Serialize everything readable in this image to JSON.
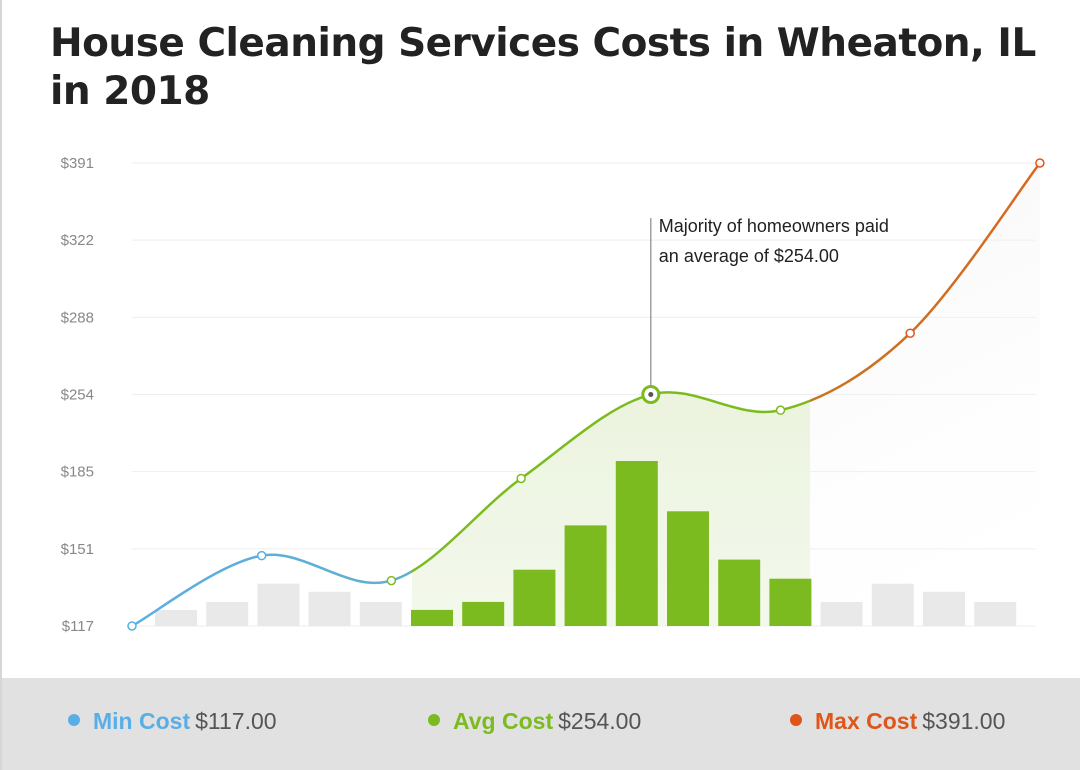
{
  "title": "House Cleaning Services Costs in Wheaton, IL in 2018",
  "colors": {
    "min": "#5aaee6",
    "avg": "#7cbb1f",
    "max": "#e0561a",
    "bar_gray": "#e9e9e9",
    "grid": "#eeeeee",
    "axis_text": "#888888"
  },
  "annotation": {
    "line1": "Majority of homeowners paid",
    "line2": "an average of $254.00"
  },
  "legend": [
    {
      "key": "min",
      "name": "Min Cost",
      "value": "$117.00"
    },
    {
      "key": "avg",
      "name": "Avg Cost",
      "value": "$254.00"
    },
    {
      "key": "max",
      "name": "Max Cost",
      "value": "$391.00"
    }
  ],
  "chart_data": {
    "type": "line",
    "title": "House Cleaning Services Costs in Wheaton, IL in 2018",
    "xlabel": "",
    "ylabel": "",
    "y_tick_labels": [
      "$117",
      "$151",
      "$185",
      "$254",
      "$288",
      "$322",
      "$391"
    ],
    "y_tick_values": [
      117,
      151,
      185,
      254,
      288,
      322,
      391
    ],
    "grid": true,
    "legend_position": "bottom",
    "curve_points": [
      {
        "x": 0,
        "y": 117
      },
      {
        "x": 1,
        "y": 148
      },
      {
        "x": 2,
        "y": 137
      },
      {
        "x": 3,
        "y": 182
      },
      {
        "x": 4,
        "y": 254
      },
      {
        "x": 5,
        "y": 240
      },
      {
        "x": 6,
        "y": 281
      },
      {
        "x": 7,
        "y": 391
      }
    ],
    "segments": [
      {
        "name": "Min Cost",
        "from": 0,
        "to": 2
      },
      {
        "name": "Avg Cost",
        "from": 2,
        "to": 5
      },
      {
        "name": "Max Cost",
        "from": 5,
        "to": 7
      }
    ],
    "highlight_point": {
      "x": 4,
      "y": 254
    },
    "distribution_bars": [
      {
        "value": 16,
        "highlight": false
      },
      {
        "value": 24,
        "highlight": false
      },
      {
        "value": 42,
        "highlight": false
      },
      {
        "value": 34,
        "highlight": false
      },
      {
        "value": 24,
        "highlight": false
      },
      {
        "value": 16,
        "highlight": true
      },
      {
        "value": 24,
        "highlight": true
      },
      {
        "value": 56,
        "highlight": true
      },
      {
        "value": 100,
        "highlight": true
      },
      {
        "value": 164,
        "highlight": true
      },
      {
        "value": 114,
        "highlight": true
      },
      {
        "value": 66,
        "highlight": true
      },
      {
        "value": 47,
        "highlight": true
      },
      {
        "value": 24,
        "highlight": false
      },
      {
        "value": 42,
        "highlight": false
      },
      {
        "value": 34,
        "highlight": false
      },
      {
        "value": 24,
        "highlight": false
      }
    ]
  }
}
